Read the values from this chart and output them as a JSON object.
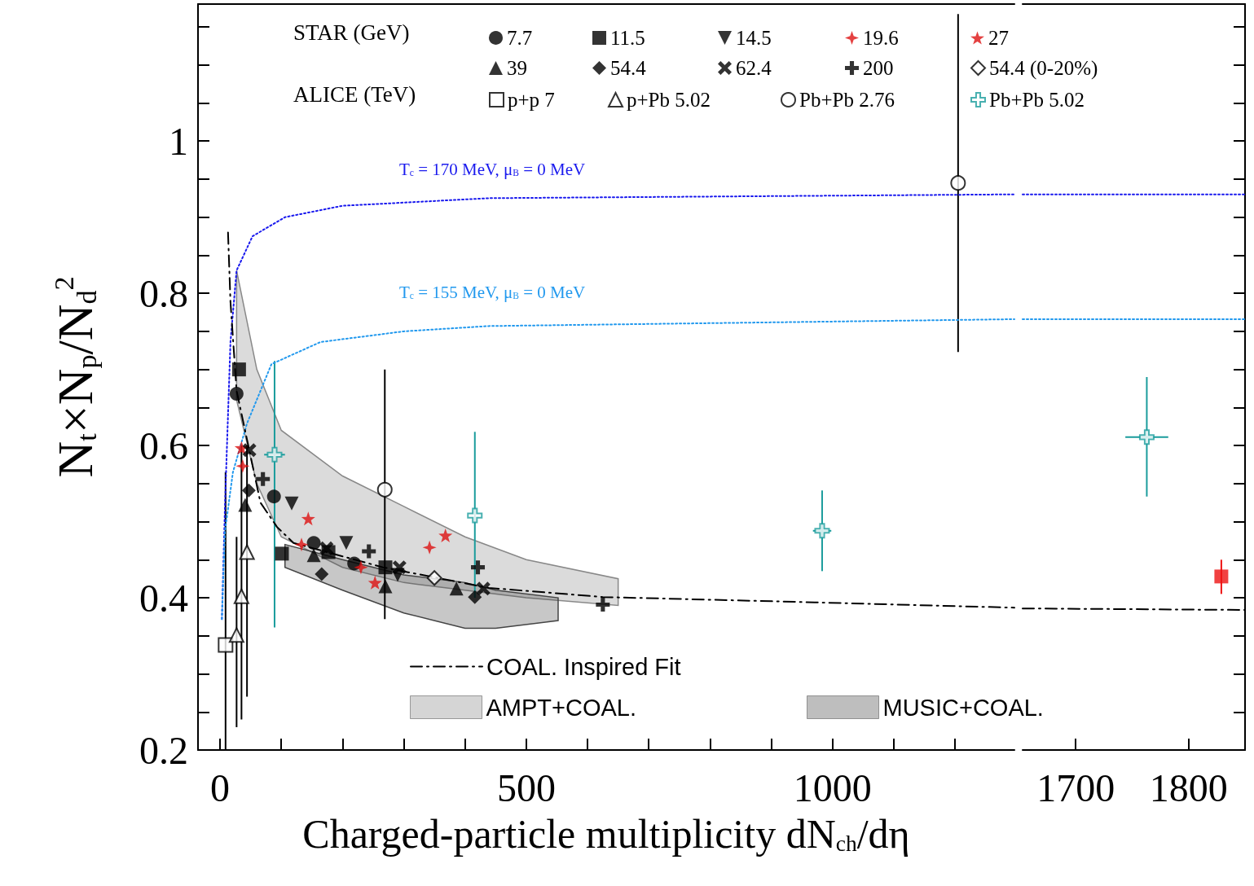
{
  "chart_data": [
    {
      "type": "scatter",
      "xlabel": "Charged-particle multiplicity dN$_{ch}$/dη",
      "ylabel": "N$_{t}$×N$_{p}$/N$_{d}$$^{2}$",
      "xlim": [
        -36,
        1297
      ],
      "ylim": [
        0.2,
        1.18
      ],
      "xticks": [
        0,
        {
          "value": 100,
          "label": null
        },
        {
          "value": 200,
          "label": null
        },
        {
          "value": 300,
          "label": null
        },
        {
          "value": 400,
          "label": null
        },
        500,
        {
          "value": 600,
          "label": null
        },
        {
          "value": 700,
          "label": null
        },
        {
          "value": 800,
          "label": null
        },
        {
          "value": 900,
          "label": null
        },
        1000,
        {
          "value": 1100,
          "label": null
        },
        {
          "value": 1200,
          "label": null
        }
      ],
      "yticks": [
        0.2,
        {
          "value": 0.25,
          "label": null
        },
        {
          "value": 0.3,
          "label": null
        },
        {
          "value": 0.35,
          "label": null
        },
        0.4,
        {
          "value": 0.45,
          "label": null
        },
        {
          "value": 0.5,
          "label": null
        },
        {
          "value": 0.55,
          "label": null
        },
        0.6,
        {
          "value": 0.65,
          "label": null
        },
        {
          "value": 0.7,
          "label": null
        },
        {
          "value": 0.75,
          "label": null
        },
        0.8,
        {
          "value": 0.85,
          "label": null
        },
        {
          "value": 0.9,
          "label": null
        },
        {
          "value": 0.95,
          "label": null
        },
        1,
        {
          "value": 1.05,
          "label": null
        },
        {
          "value": 1.1,
          "label": null
        },
        {
          "value": 1.15,
          "label": null
        }
      ],
      "legend": "top",
      "annotations": [
        "STAR (GeV)",
        "ALICE (TeV)",
        "T$_{c}$ = 170 MeV, μ$_{B}$ = 0 MeV",
        "T$_{c}$ = 155 MeV, μ$_{B}$ = 0 MeV"
      ],
      "series": [
        {
          "name": "7.7",
          "marker": "circle",
          "color": "#000000",
          "x": [
            27,
            88,
            153,
            219
          ],
          "values": [
            0.668,
            0.533,
            0.472,
            0.445
          ]
        },
        {
          "name": "11.5",
          "marker": "square",
          "color": "#000000",
          "x": [
            31,
            101,
            177,
            270
          ],
          "values": [
            0.7,
            0.458,
            0.46,
            0.44
          ]
        },
        {
          "name": "14.5",
          "marker": "triangle-down",
          "color": "#000000",
          "x": [
            117,
            206,
            290
          ],
          "values": [
            0.524,
            0.472,
            0.43
          ]
        },
        {
          "name": "19.6",
          "marker": "star4",
          "color": "#dd1111",
          "x": [
            37,
            133,
            230,
            342
          ],
          "values": [
            0.573,
            0.47,
            0.44,
            0.466
          ]
        },
        {
          "name": "27",
          "marker": "star",
          "color": "#dd1111",
          "x": [
            35,
            144,
            253,
            368
          ],
          "values": [
            0.597,
            0.504,
            0.42,
            0.482
          ]
        },
        {
          "name": "39",
          "marker": "triangle",
          "color": "#000000",
          "x": [
            41,
            153,
            270,
            386
          ],
          "values": [
            0.522,
            0.456,
            0.415,
            0.412
          ]
        },
        {
          "name": "54.4",
          "marker": "diamond",
          "color": "#000000",
          "x": [
            47,
            166,
            416
          ],
          "values": [
            0.541,
            0.431,
            0.401
          ]
        },
        {
          "name": "62.4",
          "marker": "x",
          "color": "#000000",
          "x": [
            48,
            174,
            293,
            430
          ],
          "values": [
            0.594,
            0.465,
            0.44,
            0.412
          ]
        },
        {
          "name": "200",
          "marker": "cross",
          "color": "#000000",
          "x": [
            70,
            243,
            421,
            625
          ],
          "values": [
            0.556,
            0.461,
            0.44,
            0.391
          ]
        },
        {
          "name": "54.4 (0-20%)",
          "marker": "diamond-open",
          "color": "#000000",
          "x": [
            350
          ],
          "values": [
            0.426
          ]
        },
        {
          "name": "p+p 7",
          "marker": "square-open",
          "color": "#000000",
          "x": [
            9
          ],
          "values": [
            0.338
          ],
          "errors": [
            [
              0.2,
              0.565
            ]
          ]
        },
        {
          "name": "p+Pb 5.02",
          "marker": "triangle-open",
          "color": "#000000",
          "x": [
            27,
            35,
            44
          ],
          "values": [
            0.351,
            0.402,
            0.46
          ],
          "errors": [
            [
              0.23,
              0.48
            ],
            [
              0.24,
              0.6
            ],
            [
              0.27,
              0.6
            ]
          ]
        },
        {
          "name": "Pb+Pb 2.76",
          "marker": "circle-open",
          "color": "#000000",
          "x": [
            269,
            1205
          ],
          "values": [
            0.542,
            0.945
          ],
          "errors": [
            [
              0.372,
              0.7
            ],
            [
              0.723,
              1.167
            ]
          ]
        },
        {
          "name": "Pb+Pb 5.02",
          "marker": "cross-open",
          "color": "#1a9c9c",
          "x": [
            89,
            416,
            983
          ],
          "values": [
            0.588,
            0.508,
            0.488
          ],
          "errors": [
            [
              0.361,
              0.711
            ],
            [
              0.4,
              0.618
            ],
            [
              0.435,
              0.541
            ]
          ],
          "xerrors": [
            17,
            null,
            15
          ]
        },
        {
          "type": "line",
          "line_style": "dotted",
          "color": "#1a1aee",
          "x": [
            3,
            8,
            17,
            27,
            53,
            106,
            200,
            439,
            1297
          ],
          "values": [
            0.372,
            0.52,
            0.736,
            0.83,
            0.875,
            0.9,
            0.915,
            0.925,
            0.93
          ]
        },
        {
          "type": "line",
          "line_style": "dotted",
          "color": "#2299ee",
          "x": [
            3,
            8,
            21,
            44,
            84,
            164,
            300,
            439,
            1297
          ],
          "values": [
            0.372,
            0.487,
            0.565,
            0.629,
            0.707,
            0.736,
            0.75,
            0.757,
            0.766
          ]
        },
        {
          "type": "line",
          "name": "COAL. Inspired Fit",
          "line_style": "dashed",
          "color": "#000000",
          "x": [
            13,
            17,
            27,
            66,
            93,
            120,
            266,
            439,
            625,
            971,
            1297
          ],
          "values": [
            0.88,
            0.789,
            0.672,
            0.525,
            0.493,
            0.472,
            0.44,
            0.413,
            0.401,
            0.394,
            0.387
          ]
        },
        {
          "type": "area",
          "name": "AMPT+COAL.",
          "color": "#888888",
          "x": [
            27,
            60,
            100,
            200,
            300,
            400,
            500,
            650
          ],
          "values": [
            null,
            null,
            null,
            null,
            null,
            null,
            null,
            null
          ],
          "lower": [
            0.66,
            0.55,
            0.48,
            0.44,
            0.42,
            0.41,
            0.4,
            0.39
          ],
          "upper": [
            0.83,
            0.7,
            0.62,
            0.56,
            0.52,
            0.48,
            0.45,
            0.425
          ]
        },
        {
          "type": "area",
          "name": "MUSIC+COAL.",
          "color": "#444444",
          "x": [
            106,
            200,
            300,
            400,
            450,
            552
          ],
          "values": [
            null,
            null,
            null,
            null,
            null,
            null
          ],
          "lower": [
            0.44,
            0.41,
            0.38,
            0.36,
            0.36,
            0.37
          ],
          "upper": [
            0.47,
            0.45,
            0.43,
            0.42,
            0.41,
            0.4
          ]
        }
      ]
    },
    {
      "type": "scatter",
      "xlim": [
        1653,
        1850
      ],
      "ylim": [
        0.2,
        1.18
      ],
      "xticks": [
        1700,
        1800
      ],
      "yticks": [
        0.2,
        {
          "value": 0.25,
          "label": null
        },
        {
          "value": 0.3,
          "label": null
        },
        {
          "value": 0.35,
          "label": null
        },
        0.4,
        {
          "value": 0.45,
          "label": null
        },
        {
          "value": 0.5,
          "label": null
        },
        {
          "value": 0.55,
          "label": null
        },
        0.6,
        {
          "value": 0.65,
          "label": null
        },
        {
          "value": 0.7,
          "label": null
        },
        {
          "value": 0.75,
          "label": null
        },
        0.8,
        {
          "value": 0.85,
          "label": null
        },
        {
          "value": 0.9,
          "label": null
        },
        {
          "value": 0.95,
          "label": null
        },
        1,
        {
          "value": 1.05,
          "label": null
        },
        {
          "value": 1.1,
          "label": null
        },
        {
          "value": 1.15,
          "label": null
        }
      ],
      "tick_labels": "x",
      "series": [
        {
          "type": "line",
          "line_style": "dotted",
          "color": "#1a1aee",
          "x": [
            1653,
            1850
          ],
          "values": [
            0.93,
            0.93
          ]
        },
        {
          "type": "line",
          "line_style": "dotted",
          "color": "#2299ee",
          "x": [
            1653,
            1850
          ],
          "values": [
            0.766,
            0.766
          ]
        },
        {
          "type": "line",
          "line_style": "dashed",
          "color": "#000000",
          "x": [
            1653,
            1850
          ],
          "values": [
            0.386,
            0.384
          ]
        },
        {
          "marker": "cross-open",
          "color": "#1a9c9c",
          "x": [
            1763
          ],
          "values": [
            0.611
          ],
          "errors": [
            [
              0.533,
              0.69
            ]
          ],
          "xerrors": [
            19
          ]
        },
        {
          "marker": "square",
          "color": "#ee1111",
          "x": [
            1829
          ],
          "values": [
            0.428
          ],
          "errors": [
            [
              0.405,
              0.45
            ]
          ]
        }
      ]
    }
  ]
}
